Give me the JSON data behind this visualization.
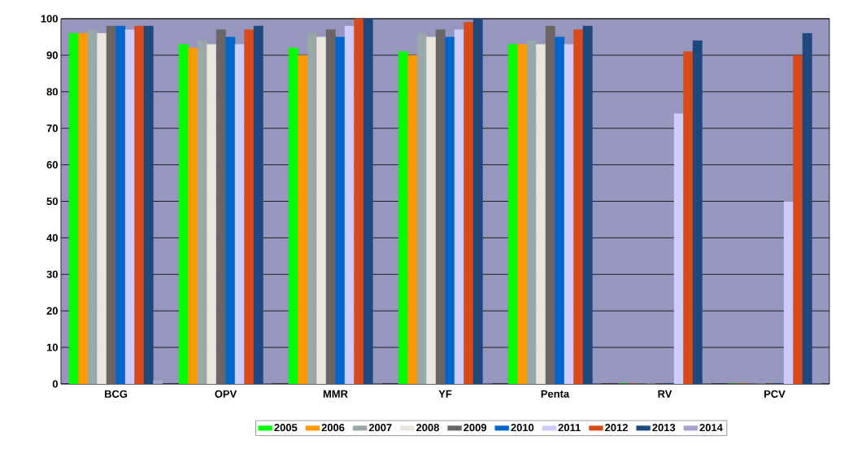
{
  "chart_data": {
    "type": "bar",
    "categories": [
      "BCG",
      "OPV",
      "MMR",
      "YF",
      "Penta",
      "RV",
      "PCV"
    ],
    "series": [
      {
        "name": "2005",
        "color": "#00ff00",
        "values": [
          96,
          93,
          92,
          91,
          93,
          0,
          0
        ]
      },
      {
        "name": "2006",
        "color": "#ff9900",
        "values": [
          96,
          92,
          90,
          90,
          93,
          0,
          0
        ]
      },
      {
        "name": "2007",
        "color": "#99a8a8",
        "values": [
          97,
          94,
          96,
          96,
          94,
          0,
          0
        ]
      },
      {
        "name": "2008",
        "color": "#ebe6dd",
        "values": [
          96,
          93,
          95,
          95,
          93,
          0,
          0
        ]
      },
      {
        "name": "2009",
        "color": "#6b6565",
        "values": [
          98,
          97,
          97,
          97,
          98,
          0,
          0
        ]
      },
      {
        "name": "2010",
        "color": "#0066cc",
        "values": [
          98,
          95,
          95,
          95,
          95,
          0,
          0
        ]
      },
      {
        "name": "2011",
        "color": "#ccccff",
        "values": [
          97,
          93,
          98,
          97,
          93,
          74,
          50
        ]
      },
      {
        "name": "2012",
        "color": "#d84a1a",
        "values": [
          98,
          97,
          100,
          99,
          97,
          91,
          90
        ]
      },
      {
        "name": "2013",
        "color": "#1f497d",
        "values": [
          98,
          98,
          100,
          100,
          98,
          94,
          96
        ]
      },
      {
        "name": "2014",
        "color": "#a9a0cc",
        "values": [
          1,
          0,
          0,
          0,
          0,
          0,
          0
        ]
      }
    ],
    "ylim": [
      0,
      100
    ],
    "yticks": [
      0,
      10,
      20,
      30,
      40,
      50,
      60,
      70,
      80,
      90,
      100
    ],
    "grid": "y",
    "legend": "bottom"
  }
}
